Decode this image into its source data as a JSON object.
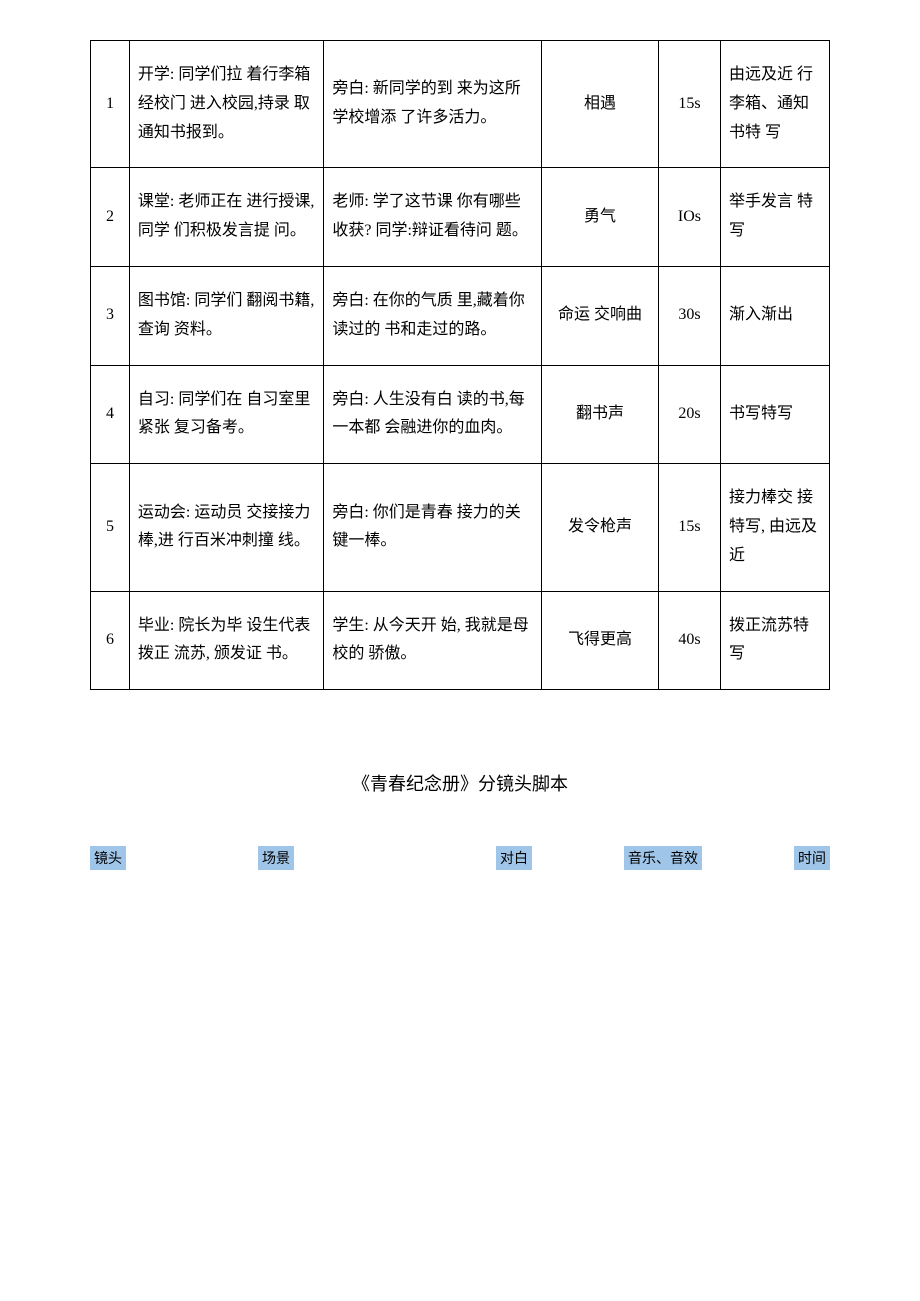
{
  "table": {
    "rows": [
      {
        "num": "1",
        "scene": "开学: 同学们拉 着行李箱经校门 进入校园,持录 取通知书报到。",
        "dialog": "旁白: 新同学的到  来为这所学校增添    了许多活力。",
        "music": "相遇",
        "time": "15s",
        "remark": "由远及近 行李箱、通知书特 写"
      },
      {
        "num": "2",
        "scene": "课堂: 老师正在 进行授课,同学 们积极发言提 问。",
        "dialog": "老师: 学了这节课 你有哪些收获?   同学:辩证看待问  题。",
        "music": "勇气",
        "time": "IOs",
        "remark": "举手发言 特写"
      },
      {
        "num": "3",
        "scene": "图书馆: 同学们 翻阅书籍,查询 资料。",
        "dialog": "旁白: 在你的气质 里,藏着你读过的    书和走过的路。",
        "music": "命运 交响曲",
        "time": "30s",
        "remark": "渐入渐出"
      },
      {
        "num": "4",
        "scene": "自习: 同学们在 自习室里紧张   复习备考。",
        "dialog": "旁白: 人生没有白 读的书,每一本都 会融进你的血肉。",
        "music": "翻书声",
        "time": "20s",
        "remark": "书写特写"
      },
      {
        "num": "5",
        "scene": "运动会: 运动员 交接接力棒,进 行百米冲刺撞 线。",
        "dialog": "旁白: 你们是青春 接力的关键一棒。",
        "music": "发令枪声",
        "time": "15s",
        "remark": "接力棒交 接特写,  由远及近"
      },
      {
        "num": "6",
        "scene": "毕业: 院长为毕 设生代表拨正   流苏,  颁发证 书。",
        "dialog": "学生:  从今天开 始, 我就是母校的 骄傲。",
        "music": "飞得更高",
        "time": "40s",
        "remark": "拨正流苏特 写"
      }
    ]
  },
  "subtitle": "《青春纪念册》分镜头脚本",
  "headers": {
    "h1": "镜头",
    "h2": "场景",
    "h3": "对白",
    "h4": "音乐、音效",
    "h5": "时间"
  },
  "colors": {
    "highlight_bg": "#9fc5e8",
    "border": "#000000",
    "text": "#000000",
    "bg": "#ffffff"
  }
}
